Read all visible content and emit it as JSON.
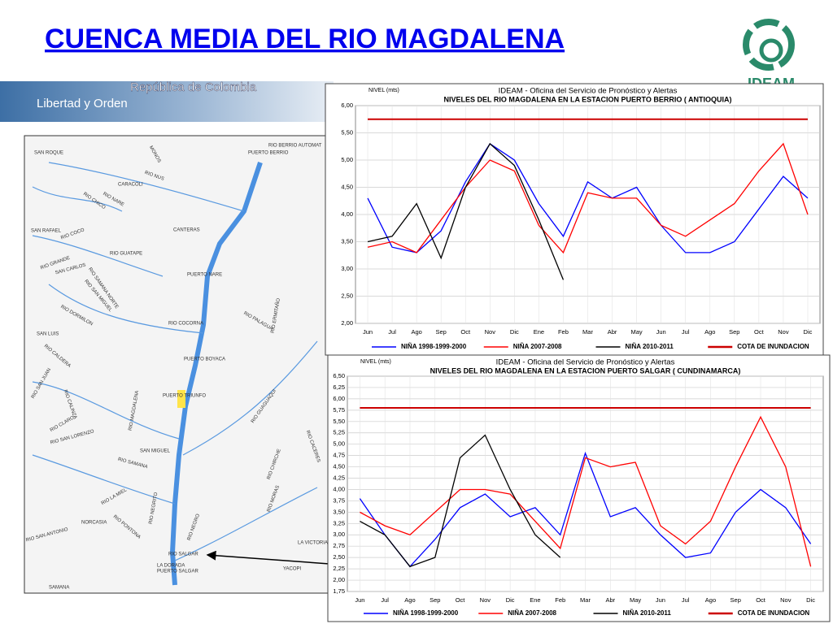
{
  "title": "CUENCA  MEDIA DEL RIO  MAGDALENA",
  "banner": {
    "country": "República de Colombia",
    "motto": "Libertad y Orden",
    "logo": "IDEAM"
  },
  "map": {
    "labels": [
      "RIO BERRIO AUTOMAT",
      "PUERTO BERRIO",
      "SAN ROQUE",
      "MONOS",
      "RIO NUS",
      "CARACOLI",
      "RIO NARE",
      "RIO CHICO",
      "CANTERAS",
      "SAN RAFAEL",
      "RIO COCO",
      "RIO GRANDE",
      "SAN CARLOS",
      "RIO GUATAPE",
      "RIO SAMANA NORTE",
      "PUERTO NARE",
      "RIO SAN MIGUEL",
      "RIO DORMILON",
      "RIO COCORNA",
      "RIO PALAGUA",
      "SAN LUIS",
      "RIO CALDERA",
      "PUERTO BOYACA",
      "RIO ERMITAÑO",
      "RIO SAN JUAN",
      "PUERTO TRIUNFO",
      "RIO CALINZA",
      "RIO GUAGUAQUI",
      "RIO MAGDALENA",
      "RIO CLARO",
      "RIO SAN LORENZO",
      "SAN MIGUEL",
      "RIO SAMANA",
      "RIO CACERES",
      "RIO CHIRCHE",
      "RIO LA MIEL",
      "RIO NEGRITO",
      "NORCASIA",
      "RIO PONTONA",
      "RIO MORAS",
      "RIO NEGRO",
      "RIO SAN ANTONIO",
      "RIO SALGAR",
      "LA VICTORIA",
      "LA DORADA",
      "PUERTO SALGAR",
      "YACOPI",
      "SAMANA"
    ]
  },
  "chart_data": [
    {
      "type": "line",
      "title": "IDEAM - Oficina del Servicio de Pronóstico y Alertas",
      "subtitle": "NIVELES DEL RIO MAGDALENA EN LA ESTACION PUERTO BERRIO ( ANTIOQUIA)",
      "y_label": "NIVEL (mts)",
      "categories": [
        "Jun",
        "Jul",
        "Ago",
        "Sep",
        "Oct",
        "Nov",
        "Dic",
        "Ene",
        "Feb",
        "Mar",
        "Abr",
        "May",
        "Jun",
        "Jul",
        "Ago",
        "Sep",
        "Oct",
        "Nov",
        "Dic"
      ],
      "ylim": [
        2,
        6
      ],
      "yticks": [
        {
          "value": 2,
          "label": "2,00"
        },
        {
          "value": 2.5,
          "label": "2,50"
        },
        {
          "value": 3,
          "label": "3,00"
        },
        {
          "value": 3.5,
          "label": "3,50"
        },
        {
          "value": 4,
          "label": "4,00"
        },
        {
          "value": 4.5,
          "label": "4,50"
        },
        {
          "value": 5,
          "label": "5,00"
        },
        {
          "value": 5.5,
          "label": "5,50"
        },
        {
          "value": 6,
          "label": "6,00"
        }
      ],
      "grid": true,
      "series": [
        {
          "name": "NIÑA 1998-1999-2000",
          "color": "#0000ff",
          "values": [
            4.3,
            3.4,
            3.3,
            3.7,
            4.6,
            5.3,
            5.0,
            4.2,
            3.6,
            4.6,
            4.3,
            4.5,
            3.8,
            3.3,
            3.3,
            3.5,
            4.1,
            4.7,
            4.3
          ]
        },
        {
          "name": "NIÑA 2007-2008",
          "color": "#ff0000",
          "values": [
            3.4,
            3.5,
            3.3,
            3.9,
            4.5,
            5.0,
            4.8,
            3.8,
            3.3,
            4.4,
            4.3,
            4.3,
            3.8,
            3.6,
            3.9,
            4.2,
            4.8,
            5.3,
            4.0
          ]
        },
        {
          "name": "NIÑA 2010-2011",
          "color": "#000000",
          "values": [
            3.5,
            3.6,
            4.2,
            3.2,
            4.5,
            5.3,
            4.9,
            3.9,
            2.8,
            null,
            null,
            null,
            null,
            null,
            null,
            null,
            null,
            null,
            null
          ]
        },
        {
          "name": "COTA DE INUNDACION",
          "color": "#cc0000",
          "values": [
            5.75,
            5.75,
            5.75,
            5.75,
            5.75,
            5.75,
            5.75,
            5.75,
            5.75,
            5.75,
            5.75,
            5.75,
            5.75,
            5.75,
            5.75,
            5.75,
            5.75,
            5.75,
            5.75
          ]
        }
      ]
    },
    {
      "type": "line",
      "title": "IDEAM - Oficina del Servicio de Pronóstico y Alertas",
      "subtitle": "NIVELES DEL RIO MAGDALENA EN LA ESTACION PUERTO SALGAR ( CUNDINAMARCA)",
      "y_label": "NIVEL (mts)",
      "categories": [
        "Jun",
        "Jul",
        "Ago",
        "Sep",
        "Oct",
        "Nov",
        "Dic",
        "Ene",
        "Feb",
        "Mar",
        "Abr",
        "May",
        "Jun",
        "Jul",
        "Ago",
        "Sep",
        "Oct",
        "Nov",
        "Dic"
      ],
      "ylim": [
        1.75,
        6.5
      ],
      "yticks": [
        {
          "value": 1.75,
          "label": "1,75"
        },
        {
          "value": 2,
          "label": "2,00"
        },
        {
          "value": 2.25,
          "label": "2,25"
        },
        {
          "value": 2.5,
          "label": "2,50"
        },
        {
          "value": 2.75,
          "label": "2,75"
        },
        {
          "value": 3,
          "label": "3,00"
        },
        {
          "value": 3.25,
          "label": "3,25"
        },
        {
          "value": 3.5,
          "label": "3,50"
        },
        {
          "value": 3.75,
          "label": "3,75"
        },
        {
          "value": 4,
          "label": "4,00"
        },
        {
          "value": 4.25,
          "label": "4,25"
        },
        {
          "value": 4.5,
          "label": "4,50"
        },
        {
          "value": 4.75,
          "label": "4,75"
        },
        {
          "value": 5,
          "label": "5,00"
        },
        {
          "value": 5.25,
          "label": "5,25"
        },
        {
          "value": 5.5,
          "label": "5,50"
        },
        {
          "value": 5.75,
          "label": "5,75"
        },
        {
          "value": 6,
          "label": "6,00"
        },
        {
          "value": 6.25,
          "label": "6,25"
        },
        {
          "value": 6.5,
          "label": "6,50"
        }
      ],
      "grid": true,
      "series": [
        {
          "name": "NIÑA 1998-1999-2000",
          "color": "#0000ff",
          "values": [
            3.8,
            3.0,
            2.3,
            2.9,
            3.6,
            3.9,
            3.4,
            3.6,
            3.0,
            4.8,
            3.4,
            3.6,
            3.0,
            2.5,
            2.6,
            3.5,
            4.0,
            3.6,
            2.8
          ]
        },
        {
          "name": "NIÑA 2007-2008",
          "color": "#ff0000",
          "values": [
            3.5,
            3.2,
            3.0,
            3.5,
            4.0,
            4.0,
            3.9,
            3.3,
            2.7,
            4.7,
            4.5,
            4.6,
            3.2,
            2.8,
            3.3,
            4.5,
            5.6,
            4.5,
            2.3
          ]
        },
        {
          "name": "NIÑA 2010-2011",
          "color": "#000000",
          "values": [
            3.3,
            3.0,
            2.3,
            2.5,
            4.7,
            5.2,
            4.0,
            3.0,
            2.5,
            null,
            null,
            null,
            null,
            null,
            null,
            null,
            null,
            null,
            null
          ]
        },
        {
          "name": "COTA DE INUNDACION",
          "color": "#cc0000",
          "values": [
            5.8,
            5.8,
            5.8,
            5.8,
            5.8,
            5.8,
            5.8,
            5.8,
            5.8,
            5.8,
            5.8,
            5.8,
            5.8,
            5.8,
            5.8,
            5.8,
            5.8,
            5.8,
            5.8
          ]
        }
      ]
    }
  ]
}
